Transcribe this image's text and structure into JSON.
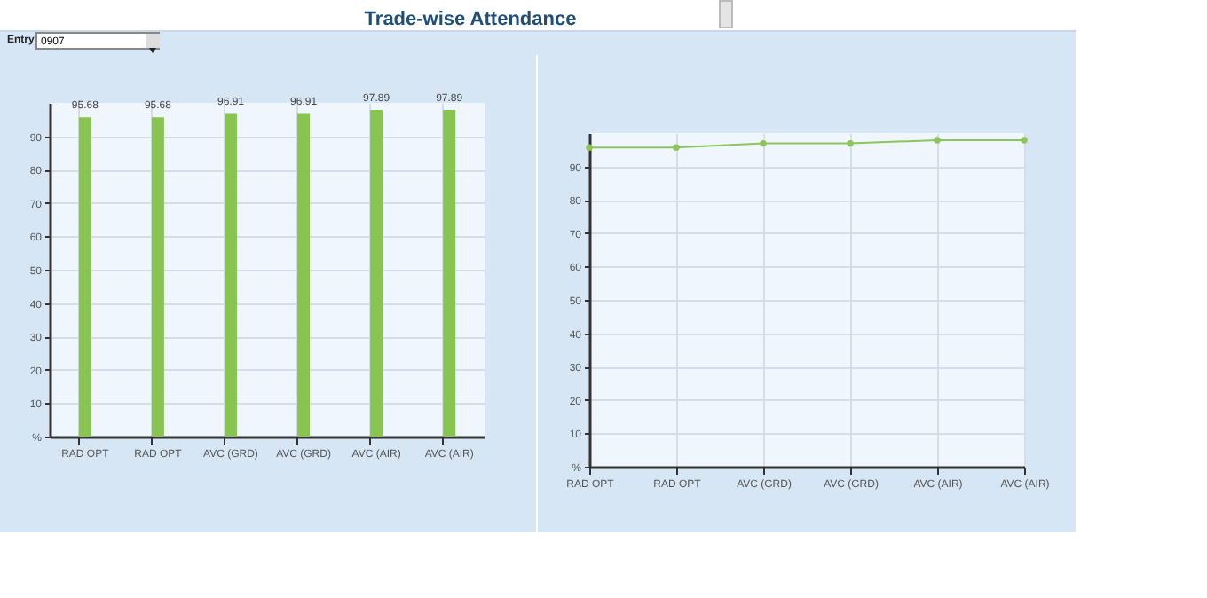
{
  "chart_data": [
    {
      "type": "bar",
      "title": "Trade-wise Attendance",
      "annotations": [
        "Entry",
        "0907"
      ],
      "categories": [
        "RAD OPT",
        "RAD OPT",
        "AVC (GRD)",
        "AVC (GRD)",
        "AVC (AIR)",
        "AVC (AIR)"
      ],
      "values": [
        95.68,
        95.68,
        96.91,
        96.91,
        97.89,
        97.89
      ],
      "color": "#88c452",
      "data_labels": true,
      "ylim": [
        0,
        100
      ],
      "yticks": [
        {
          "value": 0,
          "label": "%"
        },
        10,
        20,
        30,
        40,
        50,
        60,
        70,
        80,
        90
      ],
      "grid": true
    },
    {
      "type": "line",
      "categories": [
        "RAD OPT",
        "RAD OPT",
        "AVC (GRD)",
        "AVC (GRD)",
        "AVC (AIR)",
        "AVC (AIR)"
      ],
      "values": [
        95.68,
        95.68,
        96.91,
        96.91,
        97.89,
        97.89
      ],
      "color": "#8cc65a",
      "marker": "circle",
      "ylim": [
        0,
        100
      ],
      "yticks": [
        {
          "value": 0,
          "label": "%"
        },
        10,
        20,
        30,
        40,
        50,
        60,
        70,
        80,
        90
      ],
      "grid": true
    }
  ]
}
